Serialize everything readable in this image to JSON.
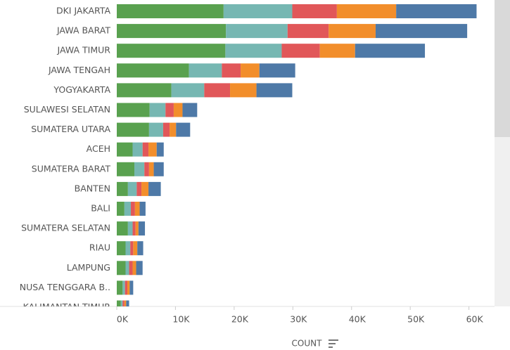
{
  "chart_data": {
    "type": "stacked_bar_horizontal",
    "x_label": "COUNT",
    "categories": [
      "DKI JAKARTA",
      "JAWA BARAT",
      "JAWA TIMUR",
      "JAWA TENGAH",
      "YOGYAKARTA",
      "SULAWESI SELATAN",
      "SUMATERA UTARA",
      "ACEH",
      "SUMATERA BARAT",
      "BANTEN",
      "BALI",
      "SUMATERA SELATAN",
      "RIAU",
      "LAMPUNG",
      "NUSA TENGGARA B..",
      "KALIMANTAN TIMUR"
    ],
    "series": [
      {
        "color": "#59a14f",
        "values": [
          18200,
          18600,
          18500,
          12300,
          9300,
          5600,
          5500,
          2700,
          3000,
          1900,
          1300,
          1900,
          1500,
          1500,
          1000,
          700
        ]
      },
      {
        "color": "#76b7b2",
        "values": [
          11700,
          10500,
          9600,
          5600,
          5600,
          2700,
          2400,
          1700,
          1700,
          1500,
          1100,
          800,
          800,
          600,
          400,
          300
        ]
      },
      {
        "color": "#e15759",
        "values": [
          7600,
          7000,
          6500,
          3200,
          4400,
          1400,
          1100,
          1000,
          800,
          800,
          700,
          500,
          500,
          600,
          400,
          300
        ]
      },
      {
        "color": "#f28e2b",
        "values": [
          10100,
          8000,
          6000,
          3200,
          4500,
          1500,
          1100,
          1400,
          800,
          1200,
          800,
          500,
          700,
          600,
          400,
          300
        ]
      },
      {
        "color": "#4e79a7",
        "values": [
          13700,
          15600,
          11900,
          6100,
          6100,
          2500,
          2400,
          1200,
          1700,
          2100,
          1000,
          1100,
          1000,
          1100,
          600,
          500
        ]
      }
    ],
    "xlim": [
      0,
      64000
    ],
    "xticks": [
      {
        "value": 0,
        "label": "0K"
      },
      {
        "value": 10000,
        "label": "10K"
      },
      {
        "value": 20000,
        "label": "20K"
      },
      {
        "value": 30000,
        "label": "30K"
      },
      {
        "value": 40000,
        "label": "40K"
      },
      {
        "value": 50000,
        "label": "50K"
      },
      {
        "value": 60000,
        "label": "60K"
      }
    ],
    "grid": false
  }
}
